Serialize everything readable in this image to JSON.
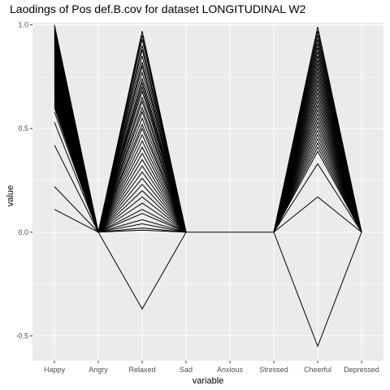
{
  "chart_data": {
    "type": "line",
    "title": "Laodings of Pos def.B.cov for dataset LONGITUDINAL W2",
    "xlabel": "variable",
    "ylabel": "value",
    "categories": [
      "Happy",
      "Angry",
      "Relaxed",
      "Sad",
      "Anxious",
      "Stressed",
      "Cheerful",
      "Depressed"
    ],
    "ylim": [
      -0.62,
      1.01
    ],
    "yticks": [
      -0.5,
      0.0,
      0.5,
      1.0
    ],
    "ytick_labels": [
      "-0.5",
      "0.0",
      "0.5",
      "1.0"
    ],
    "grid": true,
    "background": "#ebebeb",
    "gridline_color": "#ffffff",
    "line_color": "#000000",
    "segments": [
      {
        "from": "Happy",
        "to": "Angry",
        "values": [
          1.0,
          0.99,
          0.98,
          0.97,
          0.96,
          0.95,
          0.94,
          0.93,
          0.92,
          0.91,
          0.9,
          0.89,
          0.88,
          0.87,
          0.86,
          0.85,
          0.84,
          0.83,
          0.82,
          0.81,
          0.8,
          0.79,
          0.78,
          0.77,
          0.76,
          0.75,
          0.74,
          0.73,
          0.72,
          0.71,
          0.7,
          0.69,
          0.68,
          0.67,
          0.66,
          0.65,
          0.64,
          0.63,
          0.62,
          0.61,
          0.6,
          0.58,
          0.53,
          0.42,
          0.22,
          0.11
        ]
      },
      {
        "from": "Relaxed",
        "to": "Angry_Sad",
        "values": [
          0.97,
          0.95,
          0.93,
          0.9,
          0.88,
          0.85,
          0.82,
          0.8,
          0.77,
          0.74,
          0.72,
          0.7,
          0.68,
          0.65,
          0.63,
          0.6,
          0.58,
          0.55,
          0.52,
          0.5,
          0.47,
          0.44,
          0.41,
          0.38,
          0.35,
          0.32,
          0.29,
          0.26,
          0.23,
          0.2,
          0.17,
          0.14,
          0.11,
          0.09,
          0.06,
          0.04,
          0.02,
          0.01,
          -0.37
        ]
      },
      {
        "from": "Cheerful",
        "to": "Stressed_Depressed",
        "values": [
          0.99,
          0.97,
          0.95,
          0.93,
          0.91,
          0.89,
          0.87,
          0.85,
          0.83,
          0.81,
          0.79,
          0.77,
          0.75,
          0.73,
          0.71,
          0.69,
          0.67,
          0.65,
          0.63,
          0.61,
          0.59,
          0.57,
          0.55,
          0.53,
          0.51,
          0.49,
          0.47,
          0.45,
          0.43,
          0.41,
          0.39,
          0.33,
          0.17,
          -0.55
        ]
      }
    ]
  }
}
